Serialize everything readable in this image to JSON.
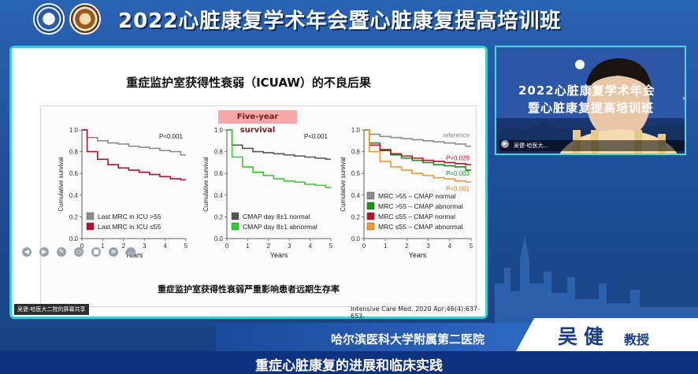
{
  "header": {
    "title": "2022心脏康复学术年会暨心脏康复提高培训班"
  },
  "slide": {
    "title": "重症监护室获得性衰弱（ICUAW）的不良后果",
    "badge": "Five-year survival",
    "caption": "重症监护室获得性衰弱严重影响患者远期生存率",
    "citation": "Intensive Care Med. 2020 Apr;46(4):637-653.",
    "share_label": "吴健-哈医大二院的屏幕共享"
  },
  "video": {
    "line1": "2022心脏康复学术年会",
    "line2": "暨心脏康复提高培训班",
    "label": "吴健-哈医大..."
  },
  "speaker": {
    "hospital": "哈尔滨医科大学附属第二医院",
    "name": "吴健",
    "title": "教授"
  },
  "subtitle": "重症心脏康复的进展和临床实践",
  "chart_data": [
    {
      "type": "line",
      "title": "",
      "xlabel": "Years",
      "ylabel": "Cumulative survival",
      "x": [
        0,
        0.5,
        1,
        1.5,
        2,
        2.5,
        3,
        3.5,
        4,
        4.5,
        5
      ],
      "xlim": [
        0,
        5
      ],
      "ylim": [
        0,
        1
      ],
      "xticks": [
        "0",
        "1",
        "2",
        "3",
        "4",
        "5"
      ],
      "yticks": [
        "0.0",
        "0.2",
        "0.4",
        "0.6",
        "0.8",
        "1.0"
      ],
      "annotation": "P<0.001",
      "series": [
        {
          "name": "Last MRC in ICU >55",
          "color": "#8c8c8c",
          "values": [
            1.0,
            0.93,
            0.9,
            0.88,
            0.87,
            0.85,
            0.84,
            0.83,
            0.81,
            0.8,
            0.77
          ]
        },
        {
          "name": "Last MRC in ICU ≤55",
          "color": "#b3102b",
          "values": [
            1.0,
            0.8,
            0.73,
            0.68,
            0.65,
            0.63,
            0.61,
            0.59,
            0.57,
            0.55,
            0.54
          ]
        }
      ]
    },
    {
      "type": "line",
      "title": "",
      "xlabel": "Years",
      "ylabel": "Cumulative survival",
      "x": [
        0,
        0.5,
        1,
        1.5,
        2,
        2.5,
        3,
        3.5,
        4,
        4.5,
        5
      ],
      "xlim": [
        0,
        5
      ],
      "ylim": [
        0,
        1
      ],
      "xticks": [
        "0",
        "1",
        "2",
        "3",
        "4",
        "5"
      ],
      "yticks": [
        "0.0",
        "0.2",
        "0.4",
        "0.6",
        "0.8",
        "1.0"
      ],
      "annotation": "P<0.001",
      "series": [
        {
          "name": "CMAP day 8±1 normal",
          "color": "#555555",
          "values": [
            1.0,
            0.86,
            0.83,
            0.8,
            0.79,
            0.78,
            0.77,
            0.76,
            0.75,
            0.74,
            0.73
          ]
        },
        {
          "name": "CMAP day 8±1 abnormal",
          "color": "#33cc33",
          "values": [
            1.0,
            0.75,
            0.66,
            0.61,
            0.58,
            0.55,
            0.53,
            0.52,
            0.5,
            0.49,
            0.47
          ]
        }
      ]
    },
    {
      "type": "line",
      "title": "",
      "xlabel": "Years",
      "ylabel": "Cumulative survival",
      "x": [
        0,
        0.5,
        1,
        1.5,
        2,
        2.5,
        3,
        3.5,
        4,
        4.5,
        5
      ],
      "xlim": [
        0,
        5
      ],
      "ylim": [
        0,
        1
      ],
      "xticks": [
        "0",
        "1",
        "2",
        "3",
        "4",
        "5"
      ],
      "yticks": [
        "0.0",
        "0.2",
        "0.4",
        "0.6",
        "0.8",
        "1.0"
      ],
      "annotations": [
        "reference",
        "P=0.029",
        "P=0.003",
        "P<0.001"
      ],
      "series": [
        {
          "name": "MRC >55 – CMAP normal",
          "color": "#8c8c8c",
          "values": [
            1.0,
            0.96,
            0.94,
            0.93,
            0.92,
            0.91,
            0.9,
            0.89,
            0.88,
            0.87,
            0.85
          ]
        },
        {
          "name": "MRC >55 – CMAP abnormal",
          "color": "#1a8f1a",
          "values": [
            1.0,
            0.88,
            0.82,
            0.77,
            0.74,
            0.72,
            0.7,
            0.68,
            0.67,
            0.66,
            0.63
          ]
        },
        {
          "name": "MRC ≤55 – CMAP normal",
          "color": "#c0102b",
          "values": [
            1.0,
            0.86,
            0.81,
            0.78,
            0.76,
            0.74,
            0.72,
            0.71,
            0.7,
            0.69,
            0.68
          ]
        },
        {
          "name": "MRC ≤55 – CMAP abnormal",
          "color": "#f39a2c",
          "values": [
            1.0,
            0.8,
            0.71,
            0.66,
            0.63,
            0.6,
            0.58,
            0.56,
            0.55,
            0.53,
            0.52
          ]
        }
      ]
    }
  ]
}
